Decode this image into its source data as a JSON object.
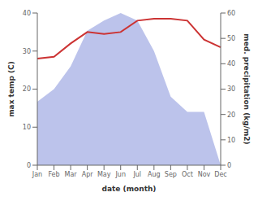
{
  "chart_data": {
    "type": "line",
    "categories": [
      "Jan",
      "Feb",
      "Mar",
      "Apr",
      "May",
      "Jun",
      "Jul",
      "Aug",
      "Sep",
      "Oct",
      "Nov",
      "Dec"
    ],
    "xlabel": "date (month)",
    "ylabel": "max temp (C)",
    "y2label": "med. precipitation (kg/m2)",
    "ylim": [
      0,
      40
    ],
    "yticks": [
      0,
      10,
      20,
      30,
      40
    ],
    "y2lim": [
      0,
      60
    ],
    "y2ticks": [
      0,
      10,
      20,
      30,
      40,
      50,
      60
    ],
    "grid": false,
    "series": [
      {
        "type": "area",
        "axis": "y2",
        "color": "#b0b8e8",
        "values": [
          25,
          30,
          39,
          53,
          57,
          60,
          57,
          45,
          27,
          21,
          21,
          0
        ]
      },
      {
        "type": "line",
        "color": "#cc3333",
        "values": [
          28,
          28.5,
          32,
          35,
          34.5,
          35,
          38,
          38.5,
          38.5,
          38,
          33,
          31
        ]
      }
    ]
  }
}
